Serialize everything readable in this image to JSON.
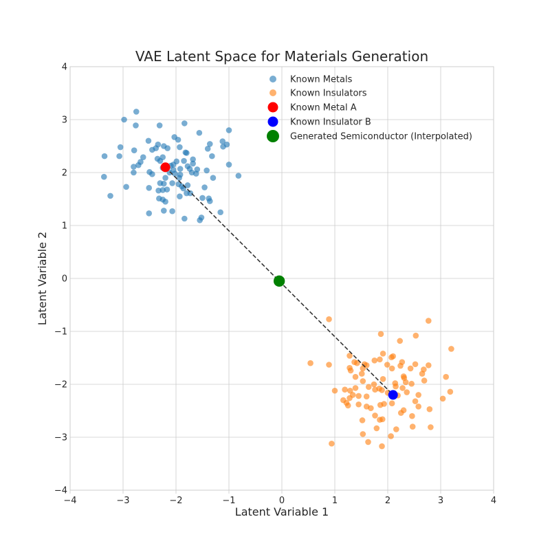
{
  "chart_data": {
    "type": "scatter",
    "title": "VAE Latent Space for Materials Generation",
    "xlabel": "Latent Variable 1",
    "ylabel": "Latent Variable 2",
    "xlim": [
      -4,
      4
    ],
    "ylim": [
      -4,
      4
    ],
    "xticks": [
      -4,
      -3,
      -2,
      -1,
      0,
      1,
      2,
      3,
      4
    ],
    "yticks": [
      -4,
      -3,
      -2,
      -1,
      0,
      1,
      2,
      3,
      4
    ],
    "xtick_labels": [
      "−4",
      "−3",
      "−2",
      "−1",
      "0",
      "1",
      "2",
      "3",
      "4"
    ],
    "ytick_labels": [
      "−4",
      "−3",
      "−2",
      "−1",
      "0",
      "1",
      "2",
      "3",
      "4"
    ],
    "grid": true,
    "legend_position": "top-right",
    "colors": {
      "metals": "#1f77b4",
      "insulators": "#ff7f0e",
      "metal_a": "#ff0000",
      "insulator_b": "#0000ff",
      "generated": "#008000",
      "path": "#333333"
    },
    "series": [
      {
        "name": "Known Metals",
        "color": "#1f77b4",
        "points": [
          [
            -2.75,
            3.15
          ],
          [
            -2.98,
            3.0
          ],
          [
            -2.76,
            2.89
          ],
          [
            -2.31,
            2.89
          ],
          [
            -1.84,
            2.93
          ],
          [
            -1.56,
            2.75
          ],
          [
            -1.0,
            2.8
          ],
          [
            -2.03,
            2.67
          ],
          [
            -1.96,
            2.62
          ],
          [
            -2.52,
            2.6
          ],
          [
            -2.34,
            2.53
          ],
          [
            -2.23,
            2.5
          ],
          [
            -1.93,
            2.48
          ],
          [
            -1.36,
            2.54
          ],
          [
            -1.12,
            2.59
          ],
          [
            -1.04,
            2.53
          ],
          [
            -1.11,
            2.49
          ],
          [
            -1.4,
            2.45
          ],
          [
            -3.05,
            2.48
          ],
          [
            -2.45,
            2.43
          ],
          [
            -2.38,
            2.46
          ],
          [
            -2.16,
            2.46
          ],
          [
            -1.82,
            2.38
          ],
          [
            -1.8,
            2.37
          ],
          [
            -2.79,
            2.42
          ],
          [
            -3.07,
            2.31
          ],
          [
            -3.35,
            2.31
          ],
          [
            -2.62,
            2.29
          ],
          [
            -2.35,
            2.26
          ],
          [
            -2.25,
            2.29
          ],
          [
            -1.68,
            2.25
          ],
          [
            -1.32,
            2.31
          ],
          [
            -2.67,
            2.2
          ],
          [
            -2.71,
            2.14
          ],
          [
            -2.3,
            2.22
          ],
          [
            -1.99,
            2.21
          ],
          [
            -1.85,
            2.22
          ],
          [
            -1.68,
            2.17
          ],
          [
            -2.1,
            2.13
          ],
          [
            -2.05,
            2.15
          ],
          [
            -1.78,
            2.12
          ],
          [
            -1.0,
            2.15
          ],
          [
            -2.8,
            2.11
          ],
          [
            -2.25,
            2.09
          ],
          [
            -2.05,
            2.05
          ],
          [
            -1.92,
            2.07
          ],
          [
            -1.74,
            2.07
          ],
          [
            -1.6,
            2.06
          ],
          [
            -1.42,
            2.04
          ],
          [
            -2.5,
            2.01
          ],
          [
            -2.45,
            1.97
          ],
          [
            -2.12,
            2.0
          ],
          [
            -2.02,
            1.98
          ],
          [
            -1.92,
            1.96
          ],
          [
            -1.7,
            2.0
          ],
          [
            -1.62,
            1.98
          ],
          [
            -2.8,
            2.0
          ],
          [
            -2.2,
            1.9
          ],
          [
            -1.94,
            1.9
          ],
          [
            -1.3,
            1.9
          ],
          [
            -0.82,
            1.94
          ],
          [
            -3.36,
            1.92
          ],
          [
            -2.3,
            1.8
          ],
          [
            -2.23,
            1.79
          ],
          [
            -2.07,
            1.8
          ],
          [
            -1.95,
            1.78
          ],
          [
            -1.89,
            1.74
          ],
          [
            -1.78,
            1.76
          ],
          [
            -2.94,
            1.73
          ],
          [
            -2.51,
            1.71
          ],
          [
            -2.33,
            1.66
          ],
          [
            -2.25,
            1.67
          ],
          [
            -2.17,
            1.68
          ],
          [
            -1.86,
            1.7
          ],
          [
            -1.46,
            1.72
          ],
          [
            -1.8,
            1.61
          ],
          [
            -1.73,
            1.61
          ],
          [
            -1.93,
            1.55
          ],
          [
            -1.5,
            1.52
          ],
          [
            -3.24,
            1.56
          ],
          [
            -2.32,
            1.51
          ],
          [
            -2.25,
            1.49
          ],
          [
            -2.2,
            1.45
          ],
          [
            -1.38,
            1.51
          ],
          [
            -1.36,
            1.46
          ],
          [
            -2.23,
            1.28
          ],
          [
            -2.07,
            1.27
          ],
          [
            -1.16,
            1.25
          ],
          [
            -2.51,
            1.23
          ],
          [
            -1.84,
            1.13
          ],
          [
            -1.52,
            1.15
          ],
          [
            -1.55,
            1.1
          ]
        ]
      },
      {
        "name": "Known Insulators",
        "color": "#ff7f0e",
        "points": [
          [
            0.89,
            -0.77
          ],
          [
            2.77,
            -0.8
          ],
          [
            1.87,
            -1.05
          ],
          [
            2.53,
            -1.08
          ],
          [
            2.23,
            -1.18
          ],
          [
            3.2,
            -1.33
          ],
          [
            2.1,
            -1.47
          ],
          [
            2.07,
            -1.49
          ],
          [
            1.91,
            -1.42
          ],
          [
            1.28,
            -1.46
          ],
          [
            0.54,
            -1.6
          ],
          [
            0.89,
            -1.63
          ],
          [
            1.37,
            -1.58
          ],
          [
            1.42,
            -1.6
          ],
          [
            1.56,
            -1.62
          ],
          [
            1.75,
            -1.55
          ],
          [
            1.85,
            -1.53
          ],
          [
            1.99,
            -1.63
          ],
          [
            2.08,
            -1.7
          ],
          [
            2.24,
            -1.65
          ],
          [
            2.27,
            -1.58
          ],
          [
            2.43,
            -1.7
          ],
          [
            2.52,
            -1.62
          ],
          [
            2.77,
            -1.64
          ],
          [
            2.68,
            -1.72
          ],
          [
            1.28,
            -1.69
          ],
          [
            1.3,
            -1.74
          ],
          [
            1.53,
            -1.7
          ],
          [
            1.6,
            -1.64
          ],
          [
            1.51,
            -1.8
          ],
          [
            1.39,
            -1.86
          ],
          [
            2.3,
            -1.85
          ],
          [
            2.31,
            -1.88
          ],
          [
            2.65,
            -1.8
          ],
          [
            3.1,
            -1.86
          ],
          [
            1.53,
            -1.94
          ],
          [
            1.74,
            -2.0
          ],
          [
            1.91,
            -1.9
          ],
          [
            2.14,
            -1.98
          ],
          [
            2.34,
            -1.96
          ],
          [
            2.45,
            -1.99
          ],
          [
            2.69,
            -1.93
          ],
          [
            1.0,
            -2.12
          ],
          [
            1.19,
            -2.1
          ],
          [
            1.29,
            -2.12
          ],
          [
            1.39,
            -2.07
          ],
          [
            1.64,
            -2.05
          ],
          [
            1.76,
            -2.1
          ],
          [
            1.84,
            -2.08
          ],
          [
            1.89,
            -2.11
          ],
          [
            2.0,
            -2.16
          ],
          [
            2.15,
            -2.04
          ],
          [
            2.28,
            -2.07
          ],
          [
            2.36,
            -2.15
          ],
          [
            2.58,
            -2.2
          ],
          [
            3.18,
            -2.14
          ],
          [
            1.28,
            -2.26
          ],
          [
            1.34,
            -2.2
          ],
          [
            1.45,
            -2.22
          ],
          [
            1.6,
            -2.23
          ],
          [
            1.16,
            -2.3
          ],
          [
            1.22,
            -2.35
          ],
          [
            1.25,
            -2.4
          ],
          [
            1.45,
            -2.38
          ],
          [
            1.6,
            -2.42
          ],
          [
            1.68,
            -2.45
          ],
          [
            1.86,
            -2.39
          ],
          [
            1.93,
            -2.37
          ],
          [
            2.08,
            -2.36
          ],
          [
            2.19,
            -2.21
          ],
          [
            2.52,
            -2.32
          ],
          [
            2.58,
            -2.42
          ],
          [
            3.04,
            -2.27
          ],
          [
            2.25,
            -2.54
          ],
          [
            2.3,
            -2.49
          ],
          [
            2.46,
            -2.6
          ],
          [
            2.79,
            -2.47
          ],
          [
            1.76,
            -2.59
          ],
          [
            1.52,
            -2.68
          ],
          [
            1.85,
            -2.67
          ],
          [
            1.9,
            -2.66
          ],
          [
            2.47,
            -2.8
          ],
          [
            2.81,
            -2.81
          ],
          [
            1.79,
            -2.83
          ],
          [
            2.16,
            -2.85
          ],
          [
            1.53,
            -2.94
          ],
          [
            2.06,
            -2.98
          ],
          [
            1.63,
            -3.09
          ],
          [
            0.94,
            -3.12
          ],
          [
            1.89,
            -3.17
          ]
        ]
      }
    ],
    "highlights": [
      {
        "name": "Known Metal A",
        "color": "#ff0000",
        "point": [
          -2.2,
          2.1
        ]
      },
      {
        "name": "Known Insulator B",
        "color": "#0000ff",
        "point": [
          2.1,
          -2.2
        ]
      },
      {
        "name": "Generated Semiconductor (Interpolated)",
        "color": "#008000",
        "point": [
          -0.05,
          -0.05
        ]
      }
    ],
    "interpolation_path": {
      "from": [
        -2.2,
        2.1
      ],
      "to": [
        2.1,
        -2.2
      ],
      "style": "dashed"
    }
  }
}
